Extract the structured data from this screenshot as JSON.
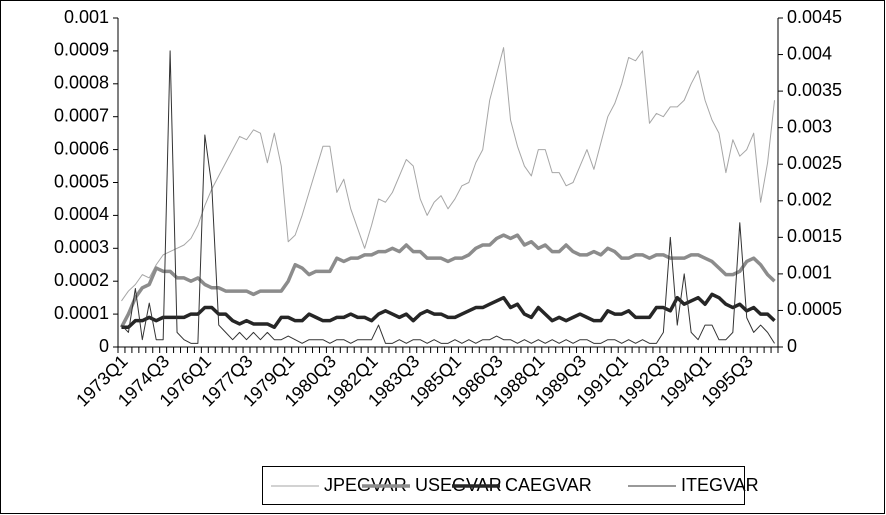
{
  "chart_data": {
    "type": "line",
    "categories": [
      "1973Q1",
      null,
      null,
      null,
      null,
      null,
      "1974Q3",
      null,
      null,
      null,
      null,
      null,
      "1976Q1",
      null,
      null,
      null,
      null,
      null,
      "1977Q3",
      null,
      null,
      null,
      null,
      null,
      "1979Q1",
      null,
      null,
      null,
      null,
      null,
      "1980Q3",
      null,
      null,
      null,
      null,
      null,
      "1982Q1",
      null,
      null,
      null,
      null,
      null,
      "1983Q3",
      null,
      null,
      null,
      null,
      null,
      "1985Q1",
      null,
      null,
      null,
      null,
      null,
      "1986Q3",
      null,
      null,
      null,
      null,
      null,
      "1988Q1",
      null,
      null,
      null,
      null,
      null,
      "1989Q3",
      null,
      null,
      null,
      null,
      null,
      "1991Q1",
      null,
      null,
      null,
      null,
      null,
      "1992Q3",
      null,
      null,
      null,
      null,
      null,
      "1994Q1",
      null,
      null,
      null,
      null,
      null,
      "1995Q3",
      null,
      null,
      null,
      null
    ],
    "ylim": [
      0,
      0.001
    ],
    "yticks": [
      0,
      0.0001,
      0.0002,
      0.0003,
      0.0004,
      0.0005,
      0.0006,
      0.0007,
      0.0008,
      0.0009,
      0.001
    ],
    "y2lim": [
      0,
      0.0045
    ],
    "y2ticks": [
      0,
      0.0005,
      0.001,
      0.0015,
      0.002,
      0.0025,
      0.003,
      0.0035,
      0.004,
      0.0045
    ],
    "grid": false,
    "legend": "bottom",
    "series": [
      {
        "name": "JPEGVAR",
        "color": "#a6a6a6",
        "values": [
          0.00014,
          0.00017,
          0.00019,
          0.00022,
          0.00021,
          0.00025,
          0.00028,
          0.00029,
          0.0003,
          0.00031,
          0.00033,
          0.00037,
          0.00043,
          0.00048,
          0.00052,
          0.00056,
          0.0006,
          0.00064,
          0.00063,
          0.00066,
          0.00065,
          0.00056,
          0.00065,
          0.00055,
          0.00032,
          0.00034,
          0.0004,
          0.00047,
          0.00054,
          0.00061,
          0.00061,
          0.00047,
          0.00051,
          0.00042,
          0.00036,
          0.0003,
          0.00037,
          0.00045,
          0.00044,
          0.00047,
          0.00052,
          0.00057,
          0.00055,
          0.00045,
          0.0004,
          0.00044,
          0.00046,
          0.00042,
          0.00045,
          0.00049,
          0.0005,
          0.00056,
          0.0006,
          0.00075,
          0.00083,
          0.00091,
          0.00069,
          0.00061,
          0.00055,
          0.00052,
          0.0006,
          0.0006,
          0.00053,
          0.00053,
          0.00049,
          0.0005,
          0.00055,
          0.0006,
          0.00054,
          0.00062,
          0.0007,
          0.00074,
          0.0008,
          0.00088,
          0.00087,
          0.0009,
          0.00068,
          0.00071,
          0.0007,
          0.00073,
          0.00073,
          0.00075,
          0.0008,
          0.00084,
          0.00075,
          0.00069,
          0.00065,
          0.00053,
          0.00063,
          0.00058,
          0.0006,
          0.00065,
          0.00044,
          0.00056,
          0.00075
        ]
      },
      {
        "name": "USEGVAR",
        "color": "#8c8c8c",
        "values": [
          6e-05,
          0.0001,
          0.00015,
          0.00018,
          0.00019,
          0.00024,
          0.00023,
          0.00023,
          0.00021,
          0.00021,
          0.0002,
          0.00021,
          0.00019,
          0.00018,
          0.00018,
          0.00017,
          0.00017,
          0.00017,
          0.00017,
          0.00016,
          0.00017,
          0.00017,
          0.00017,
          0.00017,
          0.0002,
          0.00025,
          0.00024,
          0.00022,
          0.00023,
          0.00023,
          0.00023,
          0.00027,
          0.00026,
          0.00027,
          0.00027,
          0.00028,
          0.00028,
          0.00029,
          0.00029,
          0.0003,
          0.00029,
          0.00031,
          0.00029,
          0.00029,
          0.00027,
          0.00027,
          0.00027,
          0.00026,
          0.00027,
          0.00027,
          0.00028,
          0.0003,
          0.00031,
          0.00031,
          0.00033,
          0.00034,
          0.00033,
          0.00034,
          0.00031,
          0.00032,
          0.0003,
          0.00031,
          0.00029,
          0.00029,
          0.00031,
          0.00029,
          0.00028,
          0.00028,
          0.00029,
          0.00028,
          0.0003,
          0.00029,
          0.00027,
          0.00027,
          0.00028,
          0.00028,
          0.00027,
          0.00028,
          0.00028,
          0.00027,
          0.00027,
          0.00027,
          0.00028,
          0.00028,
          0.00027,
          0.00026,
          0.00024,
          0.00022,
          0.00022,
          0.00023,
          0.00026,
          0.00027,
          0.00025,
          0.00022,
          0.0002
        ]
      },
      {
        "name": "CAEGVAR",
        "color": "#262626",
        "values": [
          6e-05,
          6e-05,
          8e-05,
          8e-05,
          9e-05,
          8e-05,
          9e-05,
          9e-05,
          9e-05,
          9e-05,
          0.0001,
          0.0001,
          0.00012,
          0.00012,
          0.0001,
          0.0001,
          8e-05,
          7e-05,
          8e-05,
          7e-05,
          7e-05,
          7e-05,
          6e-05,
          9e-05,
          9e-05,
          8e-05,
          8e-05,
          0.0001,
          9e-05,
          8e-05,
          8e-05,
          9e-05,
          9e-05,
          0.0001,
          9e-05,
          9e-05,
          8e-05,
          0.0001,
          0.00011,
          0.0001,
          9e-05,
          0.0001,
          8e-05,
          0.0001,
          0.00011,
          0.0001,
          0.0001,
          9e-05,
          9e-05,
          0.0001,
          0.00011,
          0.00012,
          0.00012,
          0.00013,
          0.00014,
          0.00015,
          0.00012,
          0.00013,
          0.0001,
          9e-05,
          0.00012,
          0.0001,
          8e-05,
          9e-05,
          8e-05,
          9e-05,
          0.0001,
          9e-05,
          8e-05,
          8e-05,
          0.00011,
          0.0001,
          0.0001,
          0.00011,
          9e-05,
          9e-05,
          9e-05,
          0.00012,
          0.00012,
          0.00011,
          0.00015,
          0.00013,
          0.00014,
          0.00015,
          0.00013,
          0.00016,
          0.00015,
          0.00013,
          0.00012,
          0.00013,
          0.00011,
          0.00012,
          0.0001,
          0.0001,
          8e-05
        ]
      },
      {
        "name": "ITEGVAR",
        "color": "#333333",
        "axis": "y2",
        "values": [
          0.0003,
          0.0002,
          0.0008,
          0.0001,
          0.0006,
          0.0001,
          0.0001,
          0.00405,
          0.0002,
          0.0001,
          5e-05,
          5e-05,
          0.0029,
          0.0022,
          0.0003,
          0.0002,
          0.0001,
          0.0002,
          0.0001,
          0.0002,
          0.0001,
          0.0002,
          0.0001,
          0.0001,
          0.00015,
          0.0001,
          5e-05,
          0.0001,
          0.0001,
          0.0001,
          5e-05,
          0.0001,
          0.0001,
          5e-05,
          0.0001,
          0.0001,
          0.0001,
          0.0003,
          5e-05,
          5e-05,
          0.0001,
          5e-05,
          0.0001,
          0.0001,
          5e-05,
          0.0001,
          5e-05,
          5e-05,
          0.0001,
          5e-05,
          0.0001,
          5e-05,
          0.0001,
          0.0001,
          0.00015,
          0.0001,
          0.0001,
          5e-05,
          0.0001,
          5e-05,
          0.0001,
          5e-05,
          0.0001,
          5e-05,
          0.0001,
          5e-05,
          0.0001,
          0.0001,
          5e-05,
          5e-05,
          0.0001,
          0.0001,
          5e-05,
          0.0001,
          5e-05,
          0.0001,
          5e-05,
          5e-05,
          0.0002,
          0.0015,
          0.0003,
          0.001,
          0.0002,
          0.0001,
          0.0003,
          0.0003,
          0.0001,
          0.0001,
          0.0002,
          0.0017,
          0.0004,
          0.0002,
          0.0003,
          0.0002,
          5e-05
        ]
      }
    ]
  }
}
